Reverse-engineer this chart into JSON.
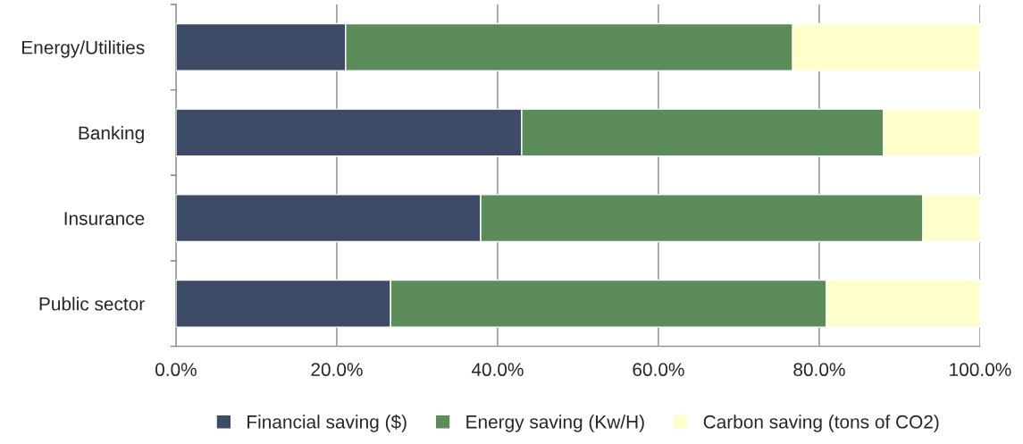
{
  "chart_data": {
    "type": "bar",
    "orientation": "horizontal",
    "stacked": true,
    "categories": [
      "Energy/Utilities",
      "Banking",
      "Insurance",
      "Public sector"
    ],
    "series": [
      {
        "name": "Financial saving ($)",
        "color": "#3d4b66",
        "values": [
          21.1,
          43.0,
          37.9,
          26.7
        ]
      },
      {
        "name": "Energy saving (Kw/H)",
        "color": "#5b8c5a",
        "values": [
          55.6,
          45.0,
          55.0,
          54.2
        ]
      },
      {
        "name": "Carbon saving (tons of CO2)",
        "color": "#ffffcc",
        "values": [
          23.3,
          12.0,
          7.1,
          19.1
        ]
      }
    ],
    "xlim": [
      0,
      100
    ],
    "xticks": [
      {
        "value": 0,
        "label": "0.0%"
      },
      {
        "value": 20,
        "label": "20.0%"
      },
      {
        "value": 40,
        "label": "40.0%"
      },
      {
        "value": 60,
        "label": "60.0%"
      },
      {
        "value": 80,
        "label": "80.0%"
      },
      {
        "value": 100,
        "label": "100.0%"
      }
    ],
    "grid": "x",
    "legend": "bottom"
  }
}
